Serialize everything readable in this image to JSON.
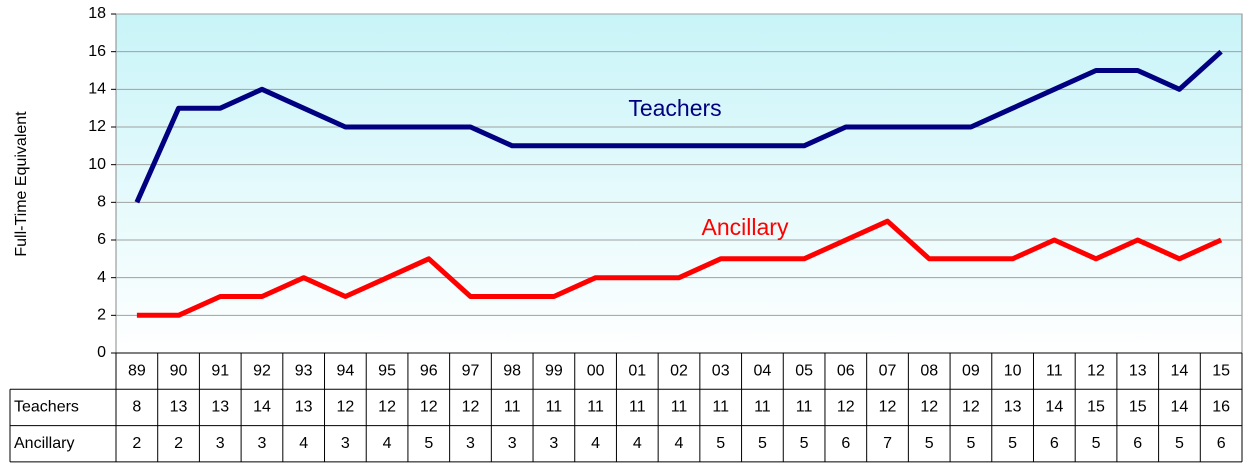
{
  "chart_data": {
    "type": "line",
    "y_label": "Full-Time Equivalent",
    "categories": [
      "89",
      "90",
      "91",
      "92",
      "93",
      "94",
      "95",
      "96",
      "97",
      "98",
      "99",
      "00",
      "01",
      "02",
      "03",
      "04",
      "05",
      "06",
      "07",
      "08",
      "09",
      "10",
      "11",
      "12",
      "13",
      "14",
      "15"
    ],
    "series": [
      {
        "name": "Teachers",
        "color": "#000080",
        "values": [
          8,
          13,
          13,
          14,
          13,
          12,
          12,
          12,
          12,
          11,
          11,
          11,
          11,
          11,
          11,
          11,
          11,
          12,
          12,
          12,
          12,
          13,
          14,
          15,
          15,
          14,
          16
        ]
      },
      {
        "name": "Ancillary",
        "color": "#ff0000",
        "values": [
          2,
          2,
          3,
          3,
          4,
          3,
          4,
          5,
          3,
          3,
          3,
          4,
          4,
          4,
          5,
          5,
          5,
          6,
          7,
          5,
          5,
          5,
          6,
          5,
          6,
          5,
          6
        ]
      }
    ],
    "ylim": [
      0,
      18
    ],
    "yticks": [
      0,
      2,
      4,
      6,
      8,
      10,
      12,
      14,
      16,
      18
    ],
    "grid": true,
    "data_table": true
  }
}
